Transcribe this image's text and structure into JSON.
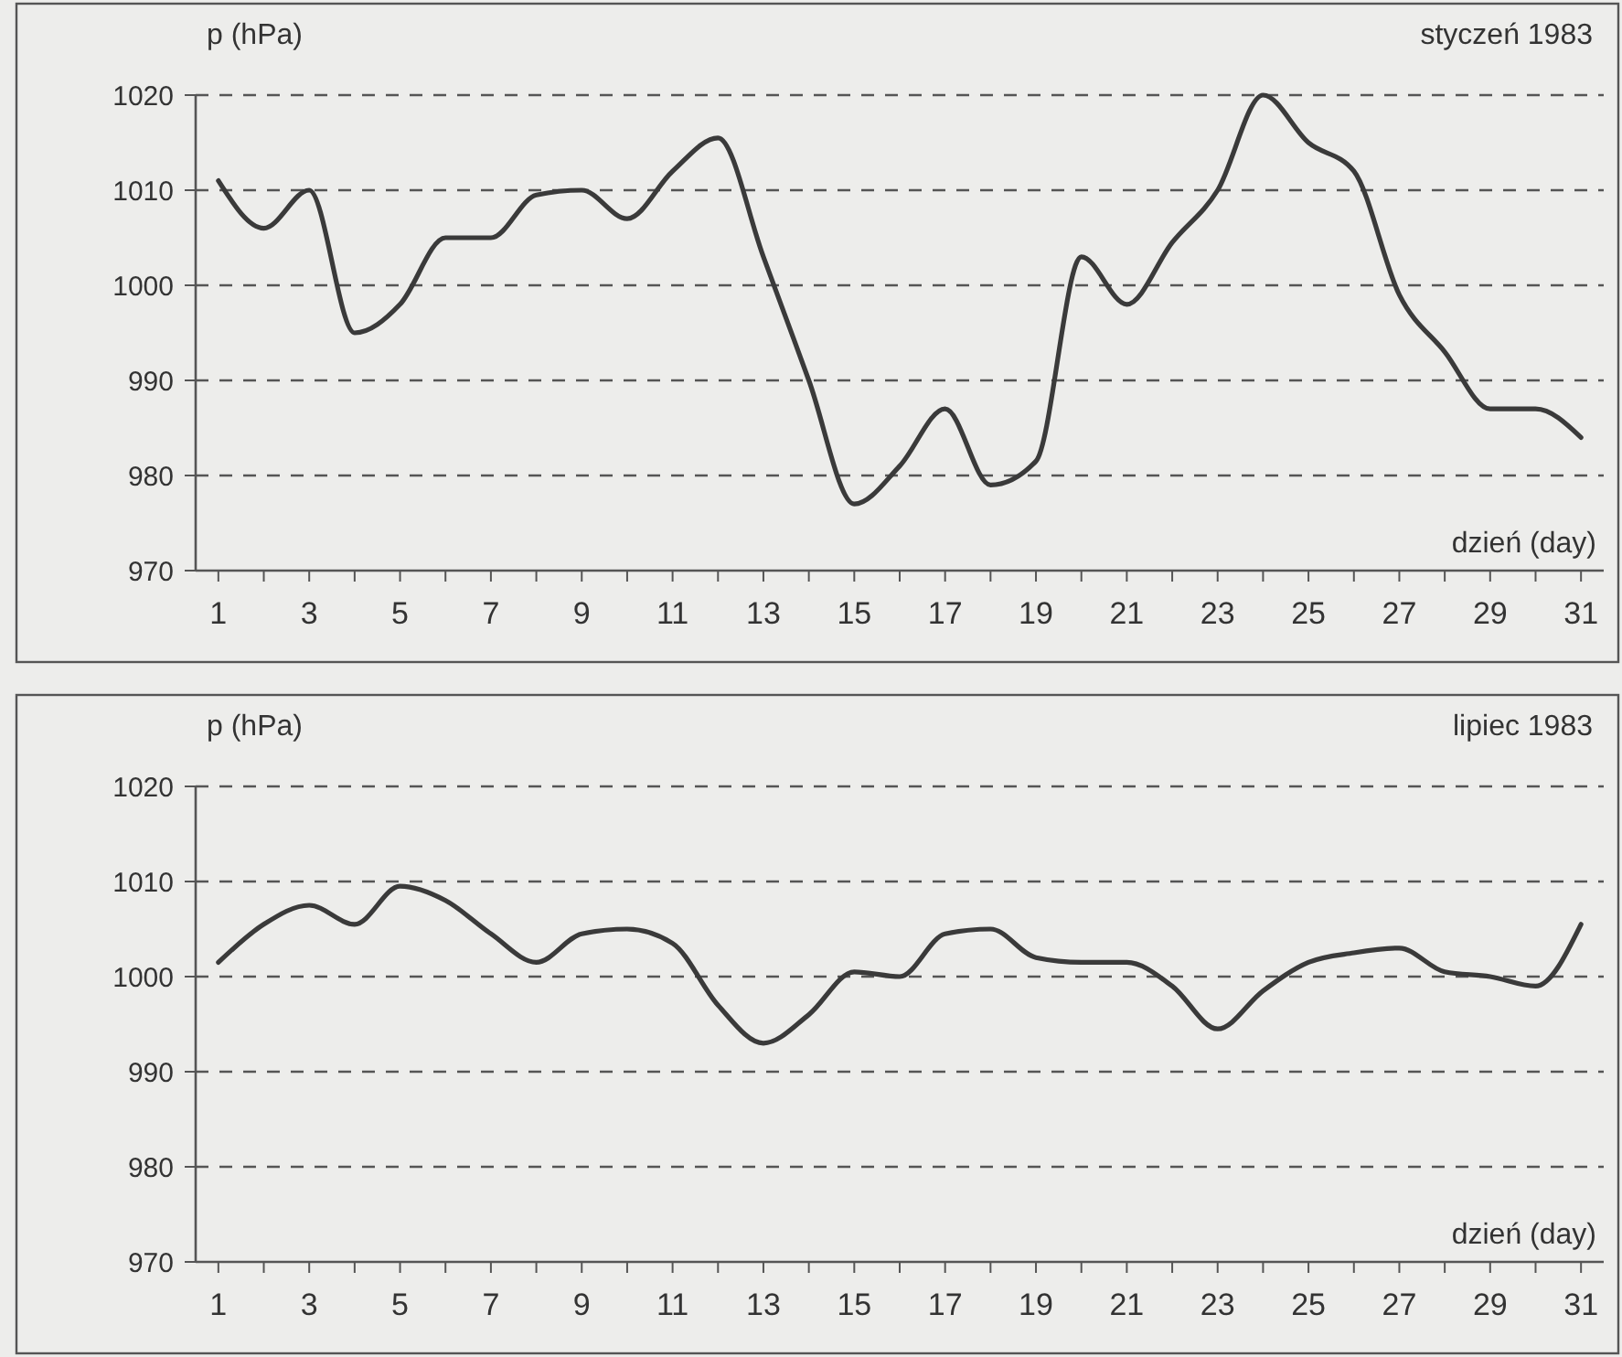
{
  "chart_data": [
    {
      "type": "line",
      "title": "styczeń 1983",
      "xlabel": "dzień (day)",
      "ylabel": "p (hPa)",
      "x": [
        1,
        2,
        3,
        4,
        5,
        6,
        7,
        8,
        9,
        10,
        11,
        12,
        13,
        14,
        15,
        16,
        17,
        18,
        19,
        20,
        21,
        22,
        23,
        24,
        25,
        26,
        27,
        28,
        29,
        30,
        31
      ],
      "series": [
        {
          "color": "#3a3a3a",
          "values": [
            1011,
            1006,
            1010,
            995,
            998,
            1005,
            1005,
            1009.5,
            1010,
            1007,
            1012,
            1015.5,
            1003,
            990,
            977,
            981,
            987,
            979,
            981.5,
            1003,
            998,
            1004.5,
            1010,
            1020,
            1015,
            1012,
            999,
            993,
            987,
            987,
            984
          ]
        }
      ],
      "xlim": [
        0.5,
        31.5
      ],
      "xticks": [
        1,
        {
          "value": 2,
          "label": null
        },
        3,
        {
          "value": 4,
          "label": null
        },
        5,
        {
          "value": 6,
          "label": null
        },
        7,
        {
          "value": 8,
          "label": null
        },
        9,
        {
          "value": 10,
          "label": null
        },
        11,
        {
          "value": 12,
          "label": null
        },
        13,
        {
          "value": 14,
          "label": null
        },
        15,
        {
          "value": 16,
          "label": null
        },
        17,
        {
          "value": 18,
          "label": null
        },
        19,
        {
          "value": 20,
          "label": null
        },
        21,
        {
          "value": 22,
          "label": null
        },
        23,
        {
          "value": 24,
          "label": null
        },
        25,
        {
          "value": 26,
          "label": null
        },
        27,
        {
          "value": 28,
          "label": null
        },
        29,
        {
          "value": 30,
          "label": null
        },
        31
      ],
      "ylim": [
        970,
        1020
      ],
      "yticks": [
        970,
        980,
        990,
        1000,
        1010,
        1020
      ],
      "grid": "y",
      "line_style": "solid"
    },
    {
      "type": "line",
      "title": "lipiec 1983",
      "xlabel": "dzień (day)",
      "ylabel": "p (hPa)",
      "x": [
        1,
        2,
        3,
        4,
        5,
        6,
        7,
        8,
        9,
        10,
        11,
        12,
        13,
        14,
        15,
        16,
        17,
        18,
        19,
        20,
        21,
        22,
        23,
        24,
        25,
        26,
        27,
        28,
        29,
        30,
        31
      ],
      "series": [
        {
          "color": "#3a3a3a",
          "values": [
            1001.5,
            1005.5,
            1007.5,
            1005.5,
            1009.5,
            1008,
            1004.5,
            1001.5,
            1004.5,
            1005,
            1003.5,
            997,
            993,
            996,
            1000.5,
            1000,
            1004.5,
            1005,
            1002,
            1001.5,
            1001.5,
            999,
            994.5,
            998.5,
            1001.5,
            1002.5,
            1003,
            1000.5,
            1000,
            999,
            1005.5
          ]
        }
      ],
      "xlim": [
        0.5,
        31.5
      ],
      "xticks": [
        1,
        {
          "value": 2,
          "label": null
        },
        3,
        {
          "value": 4,
          "label": null
        },
        5,
        {
          "value": 6,
          "label": null
        },
        7,
        {
          "value": 8,
          "label": null
        },
        9,
        {
          "value": 10,
          "label": null
        },
        11,
        {
          "value": 12,
          "label": null
        },
        13,
        {
          "value": 14,
          "label": null
        },
        15,
        {
          "value": 16,
          "label": null
        },
        17,
        {
          "value": 18,
          "label": null
        },
        19,
        {
          "value": 20,
          "label": null
        },
        21,
        {
          "value": 22,
          "label": null
        },
        23,
        {
          "value": 24,
          "label": null
        },
        25,
        {
          "value": 26,
          "label": null
        },
        27,
        {
          "value": 28,
          "label": null
        },
        29,
        {
          "value": 30,
          "label": null
        },
        31
      ],
      "ylim": [
        970,
        1020
      ],
      "yticks": [
        970,
        980,
        990,
        1000,
        1010,
        1020
      ],
      "grid": "y",
      "line_style": "solid"
    }
  ]
}
